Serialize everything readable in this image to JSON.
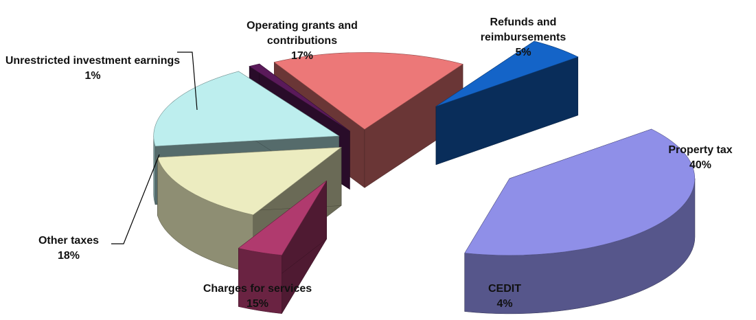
{
  "chart_data": {
    "type": "pie3d",
    "categories": [
      "Property tax",
      "CEDIT",
      "Charges for services",
      "Other taxes",
      "Unrestricted investment earnings",
      "Operating grants and contributions",
      "Refunds and reimbursements"
    ],
    "values": [
      40,
      4,
      15,
      18,
      1,
      17,
      5
    ],
    "value_labels": [
      "40%",
      "4%",
      "15%",
      "18%",
      "1%",
      "17%",
      "5%"
    ],
    "colors": [
      "#8f8fe8",
      "#b03a6e",
      "#ececc0",
      "#bdeeee",
      "#5a1a5a",
      "#ec7878",
      "#1464c8"
    ]
  }
}
